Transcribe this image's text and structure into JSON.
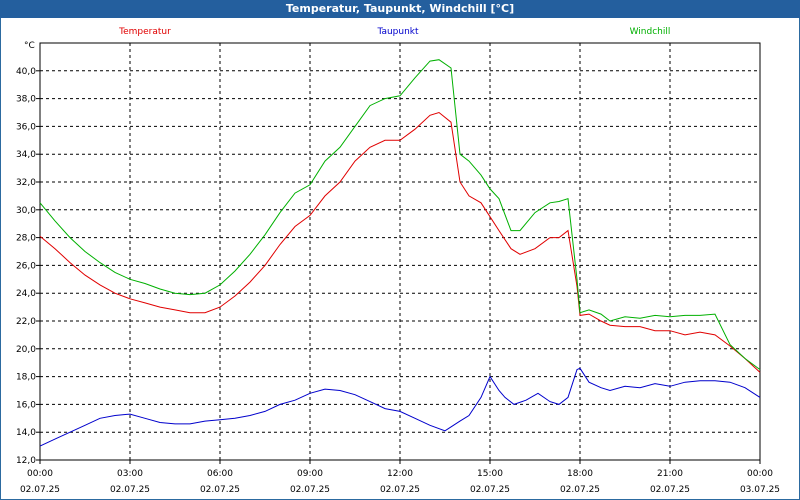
{
  "window": {
    "title": "Temperatur, Taupunkt, Windchill [°C]"
  },
  "chart_data": {
    "type": "line",
    "title": "Temperatur, Taupunkt, Windchill [°C]",
    "ylabel": "°C",
    "ylim": [
      12,
      42
    ],
    "xlim_hours": [
      0,
      24
    ],
    "grid": true,
    "legend_position": "top",
    "y_ticks": [
      "12,0",
      "14,0",
      "16,0",
      "18,0",
      "20,0",
      "22,0",
      "24,0",
      "26,0",
      "28,0",
      "30,0",
      "32,0",
      "34,0",
      "36,0",
      "38,0",
      "40,0"
    ],
    "x_ticks": [
      {
        "time": "00:00",
        "date": "02.07.25"
      },
      {
        "time": "03:00",
        "date": "02.07.25"
      },
      {
        "time": "06:00",
        "date": "02.07.25"
      },
      {
        "time": "09:00",
        "date": "02.07.25"
      },
      {
        "time": "12:00",
        "date": "02.07.25"
      },
      {
        "time": "15:00",
        "date": "02.07.25"
      },
      {
        "time": "18:00",
        "date": "02.07.25"
      },
      {
        "time": "21:00",
        "date": "02.07.25"
      },
      {
        "time": "00:00",
        "date": "03.07.25"
      }
    ],
    "series": [
      {
        "name": "Temperatur",
        "color": "#e00000",
        "x": [
          0,
          0.5,
          1,
          1.5,
          2,
          2.5,
          3,
          3.5,
          4,
          4.5,
          5,
          5.5,
          6,
          6.5,
          7,
          7.5,
          8,
          8.5,
          9,
          9.5,
          10,
          10.5,
          11,
          11.5,
          12,
          12.5,
          13,
          13.3,
          13.7,
          14,
          14.3,
          14.7,
          15,
          15.3,
          15.7,
          16,
          16.5,
          17,
          17.3,
          17.6,
          17.9,
          18,
          18.3,
          18.7,
          19,
          19.5,
          20,
          20.5,
          21,
          21.5,
          22,
          22.5,
          23,
          23.5,
          24
        ],
        "y": [
          28.1,
          27.2,
          26.2,
          25.3,
          24.6,
          24.0,
          23.6,
          23.3,
          23.0,
          22.8,
          22.6,
          22.6,
          23.0,
          23.8,
          24.8,
          26.0,
          27.5,
          28.8,
          29.6,
          31.0,
          32.0,
          33.5,
          34.5,
          35.0,
          35.0,
          35.8,
          36.8,
          37.0,
          36.3,
          32.0,
          31.0,
          30.5,
          29.5,
          28.5,
          27.2,
          26.8,
          27.2,
          28.0,
          28.0,
          28.5,
          24.5,
          22.4,
          22.5,
          22.0,
          21.7,
          21.6,
          21.6,
          21.3,
          21.3,
          21.0,
          21.2,
          21.0,
          20.2,
          19.3,
          18.3
        ]
      },
      {
        "name": "Taupunkt",
        "color": "#0000cc",
        "x": [
          0,
          0.5,
          1,
          1.5,
          2,
          2.5,
          3,
          3.5,
          4,
          4.5,
          5,
          5.5,
          6,
          6.5,
          7,
          7.5,
          8,
          8.5,
          9,
          9.5,
          10,
          10.5,
          11,
          11.5,
          12,
          12.5,
          13,
          13.5,
          14,
          14.3,
          14.7,
          15,
          15.3,
          15.5,
          15.8,
          16.2,
          16.6,
          17,
          17.3,
          17.6,
          17.9,
          18,
          18.3,
          18.7,
          19,
          19.5,
          20,
          20.5,
          21,
          21.5,
          22,
          22.5,
          23,
          23.5,
          24
        ],
        "y": [
          13.0,
          13.5,
          14.0,
          14.5,
          15.0,
          15.2,
          15.3,
          15.0,
          14.7,
          14.6,
          14.6,
          14.8,
          14.9,
          15.0,
          15.2,
          15.5,
          16.0,
          16.3,
          16.8,
          17.1,
          17.0,
          16.7,
          16.2,
          15.7,
          15.5,
          15.0,
          14.5,
          14.1,
          14.8,
          15.2,
          16.5,
          18.0,
          17.0,
          16.5,
          16.0,
          16.3,
          16.8,
          16.2,
          16.0,
          16.5,
          18.5,
          18.6,
          17.6,
          17.2,
          17.0,
          17.3,
          17.2,
          17.5,
          17.3,
          17.6,
          17.7,
          17.7,
          17.6,
          17.2,
          16.5
        ]
      },
      {
        "name": "Windchill",
        "color": "#00b000",
        "x": [
          0,
          0.5,
          1,
          1.5,
          2,
          2.5,
          3,
          3.5,
          4,
          4.5,
          5,
          5.5,
          6,
          6.5,
          7,
          7.5,
          8,
          8.5,
          9,
          9.5,
          10,
          10.5,
          11,
          11.5,
          12,
          12.5,
          13,
          13.3,
          13.7,
          14,
          14.3,
          14.7,
          15,
          15.3,
          15.7,
          16,
          16.5,
          17,
          17.3,
          17.6,
          17.9,
          18,
          18.3,
          18.7,
          19,
          19.5,
          20,
          20.5,
          21,
          21.5,
          22,
          22.5,
          23,
          23.5,
          24
        ],
        "y": [
          30.5,
          29.2,
          28.0,
          27.0,
          26.2,
          25.5,
          25.0,
          24.7,
          24.3,
          24.0,
          23.9,
          24.0,
          24.6,
          25.6,
          26.8,
          28.2,
          29.8,
          31.2,
          31.8,
          33.5,
          34.5,
          36.0,
          37.5,
          38.0,
          38.2,
          39.5,
          40.7,
          40.8,
          40.2,
          34.0,
          33.5,
          32.5,
          31.5,
          30.8,
          28.5,
          28.5,
          29.8,
          30.5,
          30.6,
          30.8,
          25.0,
          22.6,
          22.8,
          22.5,
          22.0,
          22.3,
          22.2,
          22.4,
          22.3,
          22.4,
          22.4,
          22.5,
          20.3,
          19.3,
          18.5
        ]
      }
    ]
  }
}
